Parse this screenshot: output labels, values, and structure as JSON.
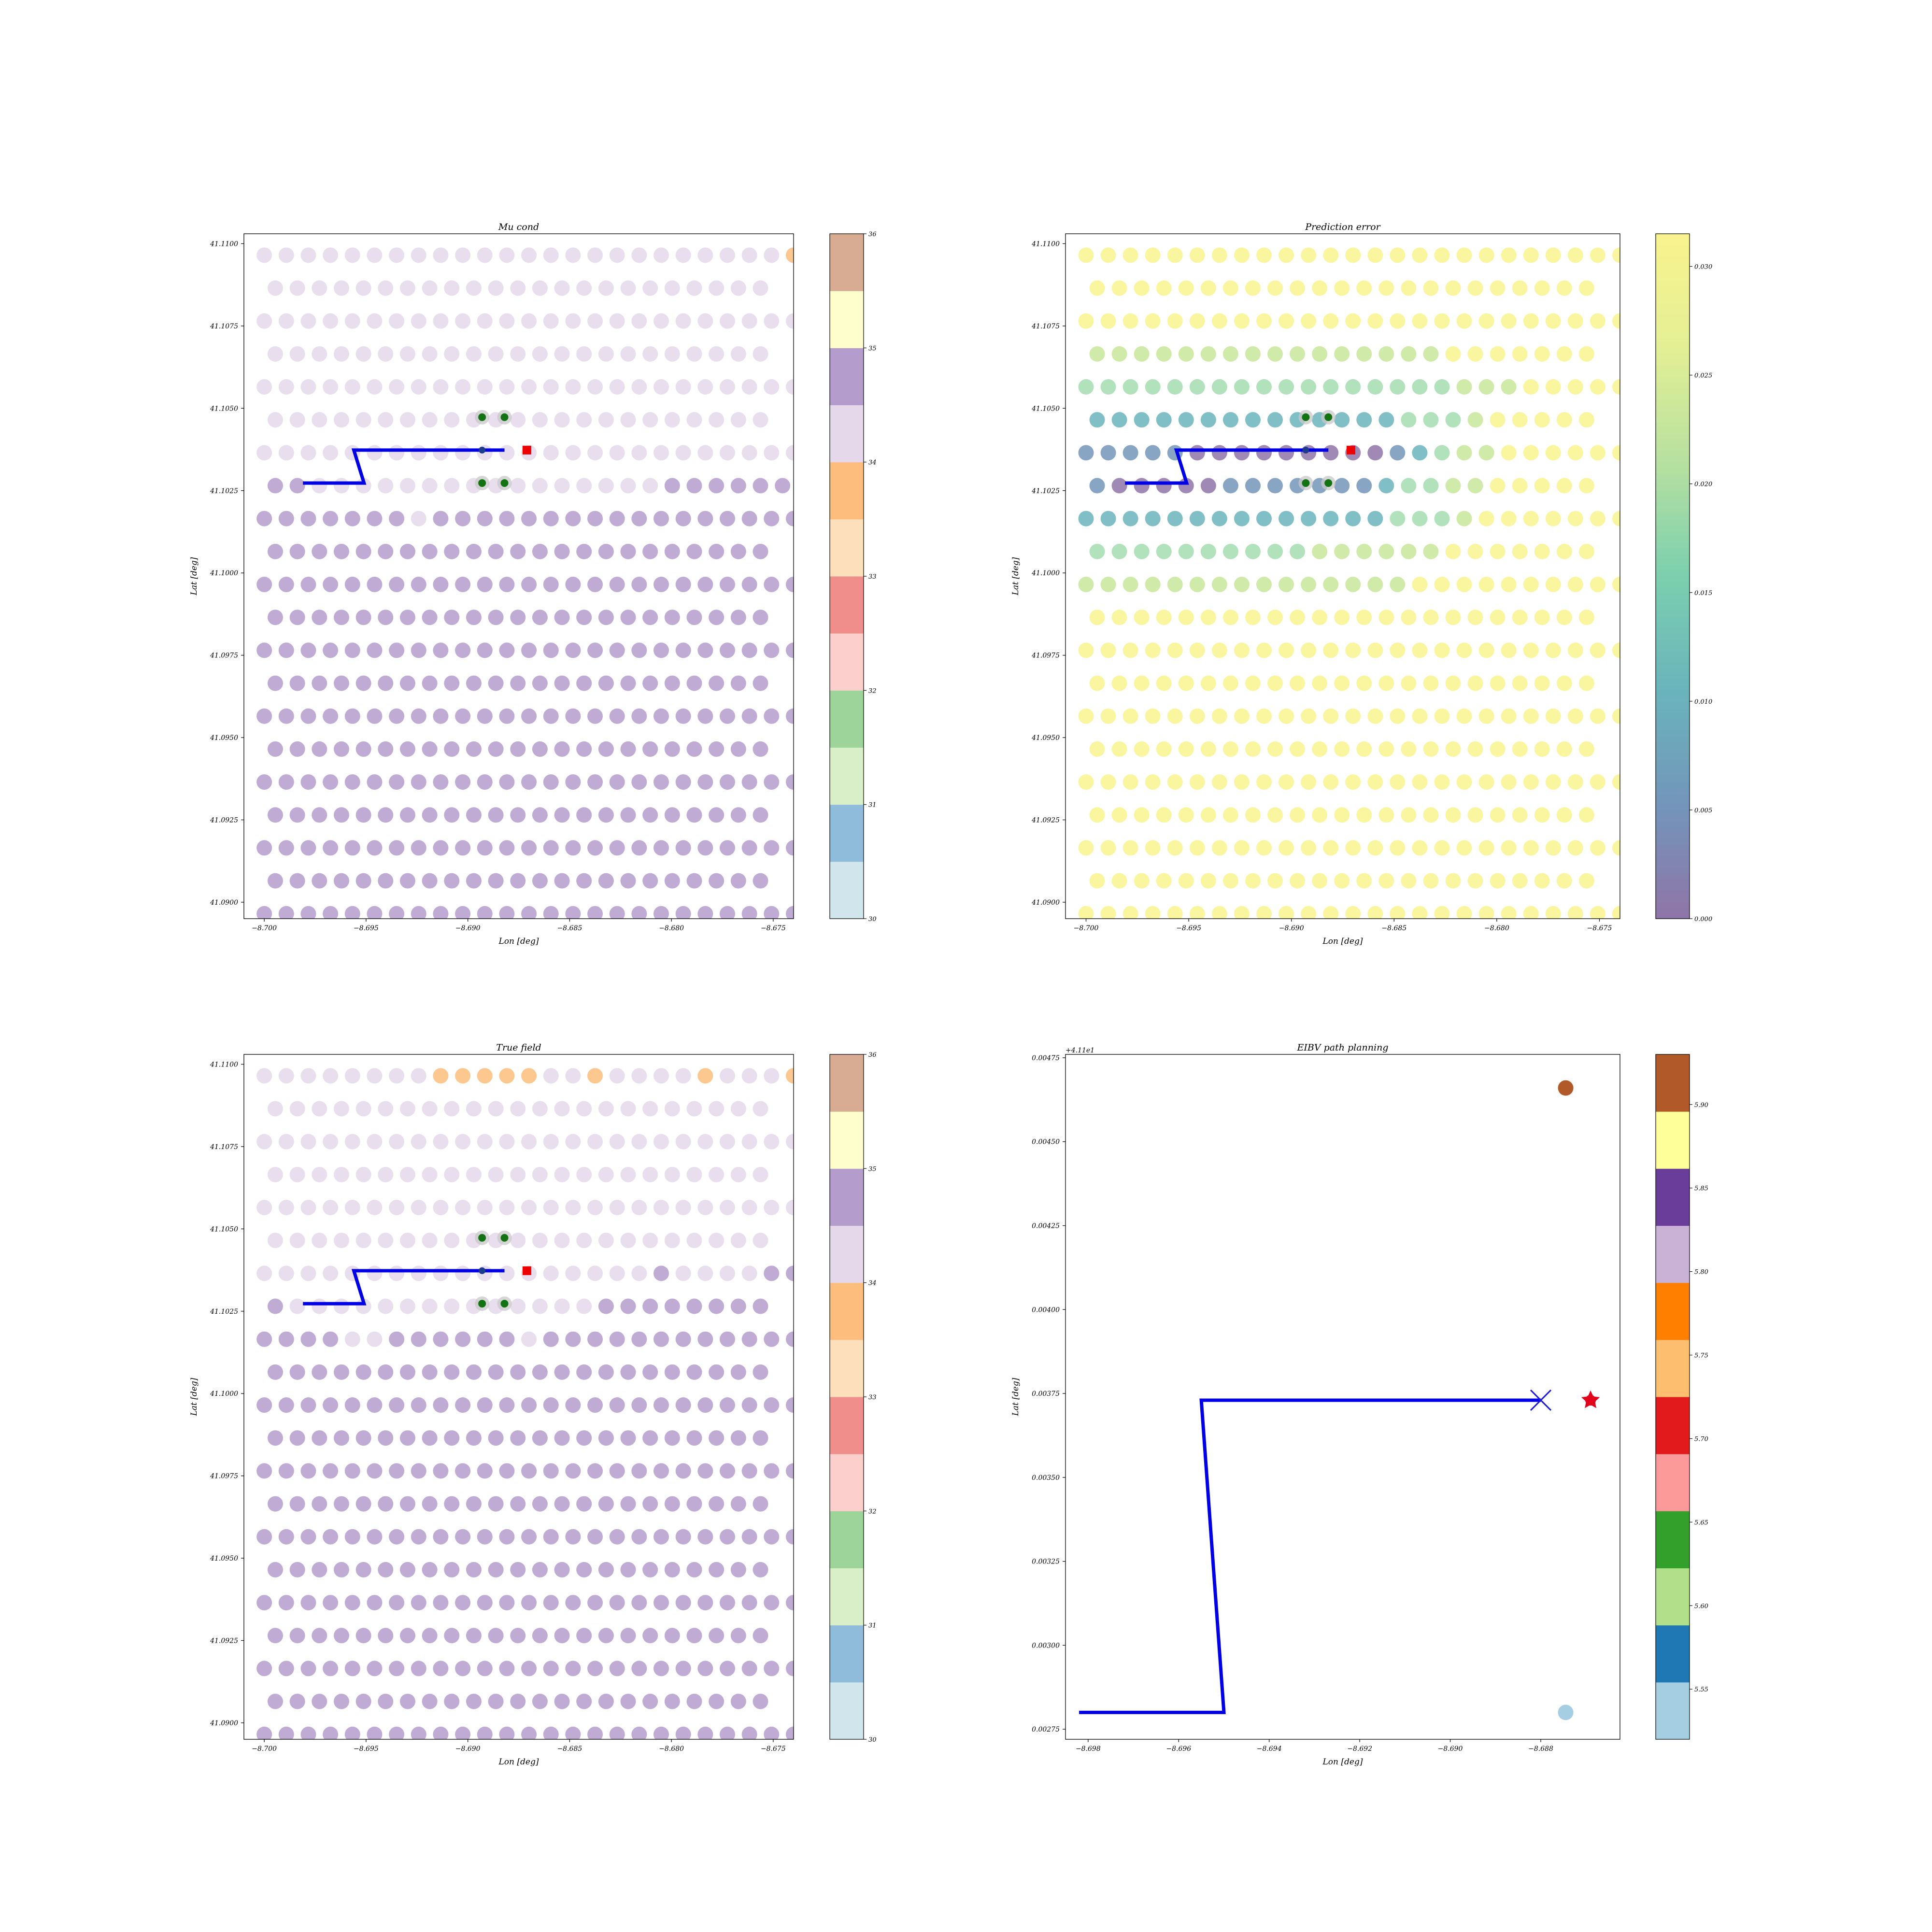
{
  "chart_data": [
    {
      "type": "scatter",
      "title": "Mu cond",
      "xlabel": "Lon [deg]",
      "ylabel": "Lat [deg]",
      "xlim": [
        -8.701,
        -8.674
      ],
      "ylim": [
        41.0895,
        41.1103
      ],
      "xticks": [
        -8.7,
        -8.695,
        -8.69,
        -8.685,
        -8.68,
        -8.675
      ],
      "xtick_labels": [
        "−8.700",
        "−8.695",
        "−8.690",
        "−8.685",
        "−8.680",
        "−8.675"
      ],
      "yticks": [
        41.09,
        41.0925,
        41.095,
        41.0975,
        41.1,
        41.1025,
        41.105,
        41.1075,
        41.11
      ],
      "ytick_labels": [
        "41.0900",
        "41.0925",
        "41.0950",
        "41.0975",
        "41.1000",
        "41.1025",
        "41.1050",
        "41.1075",
        "41.1100"
      ],
      "grid": false,
      "colorbar": {
        "kind": "discrete",
        "range": [
          30,
          36
        ],
        "ticks": [
          30,
          31,
          32,
          33,
          34,
          35,
          36
        ],
        "colors": [
          "#d1e5ec",
          "#8fbcdb",
          "#d8efc8",
          "#9dd49a",
          "#fccfcc",
          "#f08e8c",
          "#fde0bb",
          "#fdbd7d",
          "#e4d8ea",
          "#b49ccc",
          "#fefecc",
          "#d7ac93"
        ]
      },
      "field_rows_top_to_bottom": [
        "LLLLLLLLLLLLLLLLLLLLLLLLO",
        "LLLLLLLLLLLLLLLLLLLLLLL",
        "LLLLLLLLLLLLLLLLLLLLLLLLL",
        "LLLLLLLLLLLLLLLLLLLLLLL",
        "LLLLLLLLLLLLLLLLLLLLLLLLL",
        "LLLLLLLLLLLLLLLLLLLLLLL",
        "LLLLLLLLLLLLLLLLLLLLLLLLL",
        "PPLLLLLLLLLLLLLLLLPPPPPP",
        "PPPPPPPLPPPPPPPPPPPPPPPPP",
        "PPPPPPPPPPPPPPPPPPPPPPP",
        "PPPPPPPPPPPPPPPPPPPPPPPPP",
        "PPPPPPPPPPPPPPPPPPPPPPP",
        "PPPPPPPPPPPPPPPPPPPPPPPPP",
        "PPPPPPPPPPPPPPPPPPPPPPP",
        "PPPPPPPPPPPPPPPPPPPPPPPPP",
        "PPPPPPPPPPPPPPPPPPPPPPP",
        "PPPPPPPPPPPPPPPPPPPPPPPPP",
        "PPPPPPPPPPPPPPPPPPPPPPP",
        "PPPPPPPPPPPPPPPPPPPPPPPPP",
        "PPPPPPPPPPPPPPPPPPPPPPP",
        "PPPPPPPPPPPPPPPPPPPPPPPPP",
        "PPPPPPPPPPPPPPPPPPPPPPP"
      ],
      "color_codes": {
        "L": "#e4d8ea",
        "P": "#b49ccc",
        "O": "#fdbd7d"
      },
      "path": {
        "lon": [
          -8.6981,
          -8.6951,
          -8.6956,
          -8.6882
        ],
        "lat": [
          41.10273,
          41.10273,
          41.10373,
          41.10373
        ],
        "color": "#0000e6"
      },
      "samples": [
        {
          "lon": -8.6893,
          "lat": 41.10373
        }
      ],
      "candidates": [
        {
          "lon": -8.6893,
          "lat": 41.10473
        },
        {
          "lon": -8.6882,
          "lat": 41.10473
        },
        {
          "lon": -8.6893,
          "lat": 41.10273
        },
        {
          "lon": -8.6882,
          "lat": 41.10273
        }
      ],
      "next_waypoint": {
        "lon": -8.6871,
        "lat": 41.10373
      }
    },
    {
      "type": "scatter",
      "title": "Prediction error",
      "xlabel": "Lon [deg]",
      "ylabel": "Lat [deg]",
      "xlim": [
        -8.701,
        -8.674
      ],
      "ylim": [
        41.0895,
        41.1103
      ],
      "xticks": [
        -8.7,
        -8.695,
        -8.69,
        -8.685,
        -8.68,
        -8.675
      ],
      "xtick_labels": [
        "−8.700",
        "−8.695",
        "−8.690",
        "−8.685",
        "−8.680",
        "−8.675"
      ],
      "yticks": [
        41.09,
        41.0925,
        41.095,
        41.0975,
        41.1,
        41.1025,
        41.105,
        41.1075,
        41.11
      ],
      "ytick_labels": [
        "41.0900",
        "41.0925",
        "41.0950",
        "41.0975",
        "41.1000",
        "41.1025",
        "41.1050",
        "41.1075",
        "41.1100"
      ],
      "grid": false,
      "colorbar": {
        "kind": "continuous",
        "range": [
          0.0,
          0.0315
        ],
        "ticks": [
          0.0,
          0.005,
          0.01,
          0.015,
          0.02,
          0.025,
          0.03
        ],
        "tick_labels": [
          "0.000",
          "0.005",
          "0.010",
          "0.015",
          "0.020",
          "0.025",
          "0.030"
        ],
        "stops": [
          "#8f75a8",
          "#7395ba",
          "#6ab4bc",
          "#7ccfaf",
          "#b7e0a0",
          "#e3ef95",
          "#f9f38e"
        ]
      },
      "field_rows_top_to_bottom": [
        "7777777777777777777777777",
        "77777777777777777777777",
        "7777777777777777777777777",
        "66666666666666667777777",
        "5555555555555555566677777",
        "44444444444444555677777",
        "3333322222222234566777777",
        "32222233333334556677777",
        "4444444444444455567777777",
        "55555555556666667777777",
        "6666666666666667777777777",
        "77777777777777777777777",
        "7777777777777777777777777",
        "77777777777777777777777",
        "7777777777777777777777777",
        "77777777777777777777777",
        "7777777777777777777777777",
        "77777777777777777777777",
        "7777777777777777777777777",
        "77777777777777777777777",
        "7777777777777777777777777",
        "77777777777777777777777"
      ],
      "color_codes": {
        "2": "#8f75a8",
        "3": "#7395ba",
        "4": "#6ab4bc",
        "5": "#a5ddb0",
        "6": "#c8e69a",
        "7": "#f9f38e"
      },
      "path": {
        "lon": [
          -8.6981,
          -8.6951,
          -8.6956,
          -8.6882
        ],
        "lat": [
          41.10273,
          41.10273,
          41.10373,
          41.10373
        ],
        "color": "#0000e6"
      },
      "samples": [
        {
          "lon": -8.6893,
          "lat": 41.10373
        }
      ],
      "candidates": [
        {
          "lon": -8.6893,
          "lat": 41.10473
        },
        {
          "lon": -8.6882,
          "lat": 41.10473
        },
        {
          "lon": -8.6893,
          "lat": 41.10273
        },
        {
          "lon": -8.6882,
          "lat": 41.10273
        }
      ],
      "next_waypoint": {
        "lon": -8.6871,
        "lat": 41.10373
      }
    },
    {
      "type": "scatter",
      "title": "True field",
      "xlabel": "Lon [deg]",
      "ylabel": "Lat [deg]",
      "xlim": [
        -8.701,
        -8.674
      ],
      "ylim": [
        41.0895,
        41.1103
      ],
      "xticks": [
        -8.7,
        -8.695,
        -8.69,
        -8.685,
        -8.68,
        -8.675
      ],
      "xtick_labels": [
        "−8.700",
        "−8.695",
        "−8.690",
        "−8.685",
        "−8.680",
        "−8.675"
      ],
      "yticks": [
        41.09,
        41.0925,
        41.095,
        41.0975,
        41.1,
        41.1025,
        41.105,
        41.1075,
        41.11
      ],
      "ytick_labels": [
        "41.0900",
        "41.0925",
        "41.0950",
        "41.0975",
        "41.1000",
        "41.1025",
        "41.1050",
        "41.1075",
        "41.1100"
      ],
      "grid": false,
      "colorbar": {
        "kind": "discrete",
        "range": [
          30,
          36
        ],
        "ticks": [
          30,
          31,
          32,
          33,
          34,
          35,
          36
        ],
        "colors": [
          "#d1e5ec",
          "#8fbcdb",
          "#d8efc8",
          "#9dd49a",
          "#fccfcc",
          "#f08e8c",
          "#fde0bb",
          "#fdbd7d",
          "#e4d8ea",
          "#b49ccc",
          "#fefecc",
          "#d7ac93"
        ]
      },
      "field_rows_top_to_bottom": [
        "LLLLLLLLOOOOOLLOLLLLOLLLO",
        "LLLLLLLLLLLLLLLLLLLLLLL",
        "LLLLLLLLLLLLLLLLLLLLLLLLL",
        "LLLLLLLLLLLLLLLLLLLLLLL",
        "LLLLLLLLLLLLLLLLLLLLLLLLL",
        "LLLLLLLLLLLLLLLLLLLLLLL",
        "LLLLLLLLLLLLLLLLLLPLLLLPP",
        "PLLLLLLLLLLLLLLPPPPPPPP",
        "PPPPLLPPPPPPLPPPPPPPPPPPP",
        "PPPPPPPPPPPPPPPPPPPPPPP",
        "PPPPPPPPPPPPPPPPPPPPPPPPP",
        "PPPPPPPPPPPPPPPPPPPPPPP",
        "PPPPPPPPPPPPPPPPPPPPPPPPP",
        "PPPPPPPPPPPPPPPPPPPPPPP",
        "PPPPPPPPPPPPPPPPPPPPPPPPP",
        "PPPPPPPPPPPPPPPPPPPPPPP",
        "PPPPPPPPPPPPPPPPPPPPPPPPP",
        "PPPPPPPPPPPPPPPPPPPPPPP",
        "PPPPPPPPPPPPPPPPPPPPPPPPP",
        "PPPPPPPPPPPPPPPPPPPPPPP",
        "PPPPPPPPPPPPPPPPPPPPPPPPP",
        "PPPPPPPPPPPPPPPPPPPPPPP"
      ],
      "color_codes": {
        "L": "#e4d8ea",
        "P": "#b49ccc",
        "O": "#fdbd7d"
      },
      "path": {
        "lon": [
          -8.6981,
          -8.6951,
          -8.6956,
          -8.6882
        ],
        "lat": [
          41.10273,
          41.10273,
          41.10373,
          41.10373
        ],
        "color": "#0000e6"
      },
      "samples": [
        {
          "lon": -8.6893,
          "lat": 41.10373
        }
      ],
      "candidates": [
        {
          "lon": -8.6893,
          "lat": 41.10473
        },
        {
          "lon": -8.6882,
          "lat": 41.10473
        },
        {
          "lon": -8.6893,
          "lat": 41.10273
        },
        {
          "lon": -8.6882,
          "lat": 41.10273
        }
      ],
      "next_waypoint": {
        "lon": -8.6871,
        "lat": 41.10373
      }
    },
    {
      "type": "scatter",
      "title": "EIBV path planning",
      "xlabel": "Lon [deg]",
      "ylabel": "Lat [deg]",
      "offset_text": "+4.11e1",
      "xlim": [
        -8.6985,
        -8.68625
      ],
      "ylim": [
        0.00272,
        0.00476
      ],
      "xticks": [
        -8.698,
        -8.696,
        -8.694,
        -8.692,
        -8.69,
        -8.688
      ],
      "xtick_labels": [
        "−8.698",
        "−8.696",
        "−8.694",
        "−8.692",
        "−8.690",
        "−8.688"
      ],
      "yticks": [
        0.00275,
        0.003,
        0.00325,
        0.0035,
        0.00375,
        0.004,
        0.00425,
        0.0045,
        0.00475
      ],
      "ytick_labels": [
        "0.00275",
        "0.00300",
        "0.00325",
        "0.00350",
        "0.00375",
        "0.00400",
        "0.00425",
        "0.00450",
        "0.00475"
      ],
      "grid": false,
      "colorbar": {
        "kind": "discrete",
        "range": [
          5.52,
          5.93
        ],
        "ticks": [
          5.55,
          5.6,
          5.65,
          5.7,
          5.75,
          5.8,
          5.85,
          5.9
        ],
        "tick_labels": [
          "5.55",
          "5.60",
          "5.65",
          "5.70",
          "5.75",
          "5.80",
          "5.85",
          "5.90"
        ],
        "colors": [
          "#a6cee3",
          "#1f78b4",
          "#b2df8a",
          "#33a02c",
          "#fb9a99",
          "#e31a1c",
          "#fdbf6f",
          "#ff7f00",
          "#cab2d6",
          "#6a3d9a",
          "#ffff99",
          "#b15928"
        ]
      },
      "path": {
        "lon": [
          -8.6982,
          -8.695,
          -8.6955,
          -8.688
        ],
        "lat": [
          0.0028,
          0.0028,
          0.00373,
          0.00373
        ],
        "color": "#0000e6"
      },
      "current_position": {
        "lon": -8.688,
        "lat": 0.00373,
        "marker": "x"
      },
      "candidates": [
        {
          "lon": -8.68745,
          "lat": 0.00466,
          "value": 5.92
        },
        {
          "lon": -8.68745,
          "lat": 0.0028,
          "value": 5.53
        }
      ],
      "next_waypoint": {
        "lon": -8.6869,
        "lat": 0.00373,
        "value": 5.71,
        "marker": "star"
      }
    }
  ]
}
